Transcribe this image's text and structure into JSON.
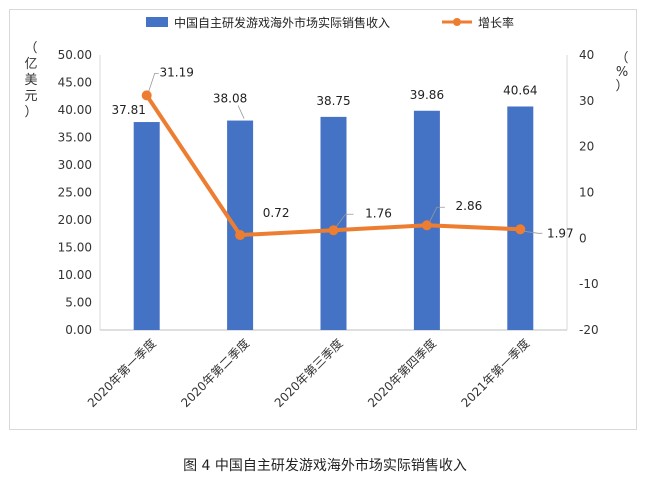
{
  "caption": "图 4  中国自主研发游戏海外市场实际销售收入",
  "chart_data": {
    "type": "bar",
    "categories": [
      "2020年第一季度",
      "2020年第二季度",
      "2020年第三季度",
      "2020年第四季度",
      "2021年第一季度"
    ],
    "series": [
      {
        "name": "中国自主研发游戏海外市场实际销售收入",
        "type": "bar",
        "axis": "left",
        "values": [
          37.81,
          38.08,
          38.75,
          39.86,
          40.64
        ],
        "color": "#4472c4"
      },
      {
        "name": "增长率",
        "type": "line",
        "axis": "right",
        "values": [
          31.19,
          0.72,
          1.76,
          2.86,
          1.97
        ],
        "color": "#ed7d31"
      }
    ],
    "y_left": {
      "label": "（亿美元）",
      "lim": [
        0,
        50
      ],
      "ticks": [
        "0.00",
        "5.00",
        "10.00",
        "15.00",
        "20.00",
        "25.00",
        "30.00",
        "35.00",
        "40.00",
        "45.00",
        "50.00"
      ]
    },
    "y_right": {
      "label": "（%）",
      "lim": [
        -20,
        40
      ],
      "ticks": [
        "-20",
        "-10",
        "0",
        "10",
        "20",
        "30",
        "40"
      ]
    },
    "bar_labels": [
      "37.81",
      "38.08",
      "38.75",
      "39.86",
      "40.64"
    ],
    "line_labels": [
      "31.19",
      "0.72",
      "1.76",
      "2.86",
      "1.97"
    ],
    "legend_position": "top",
    "grid": false
  }
}
